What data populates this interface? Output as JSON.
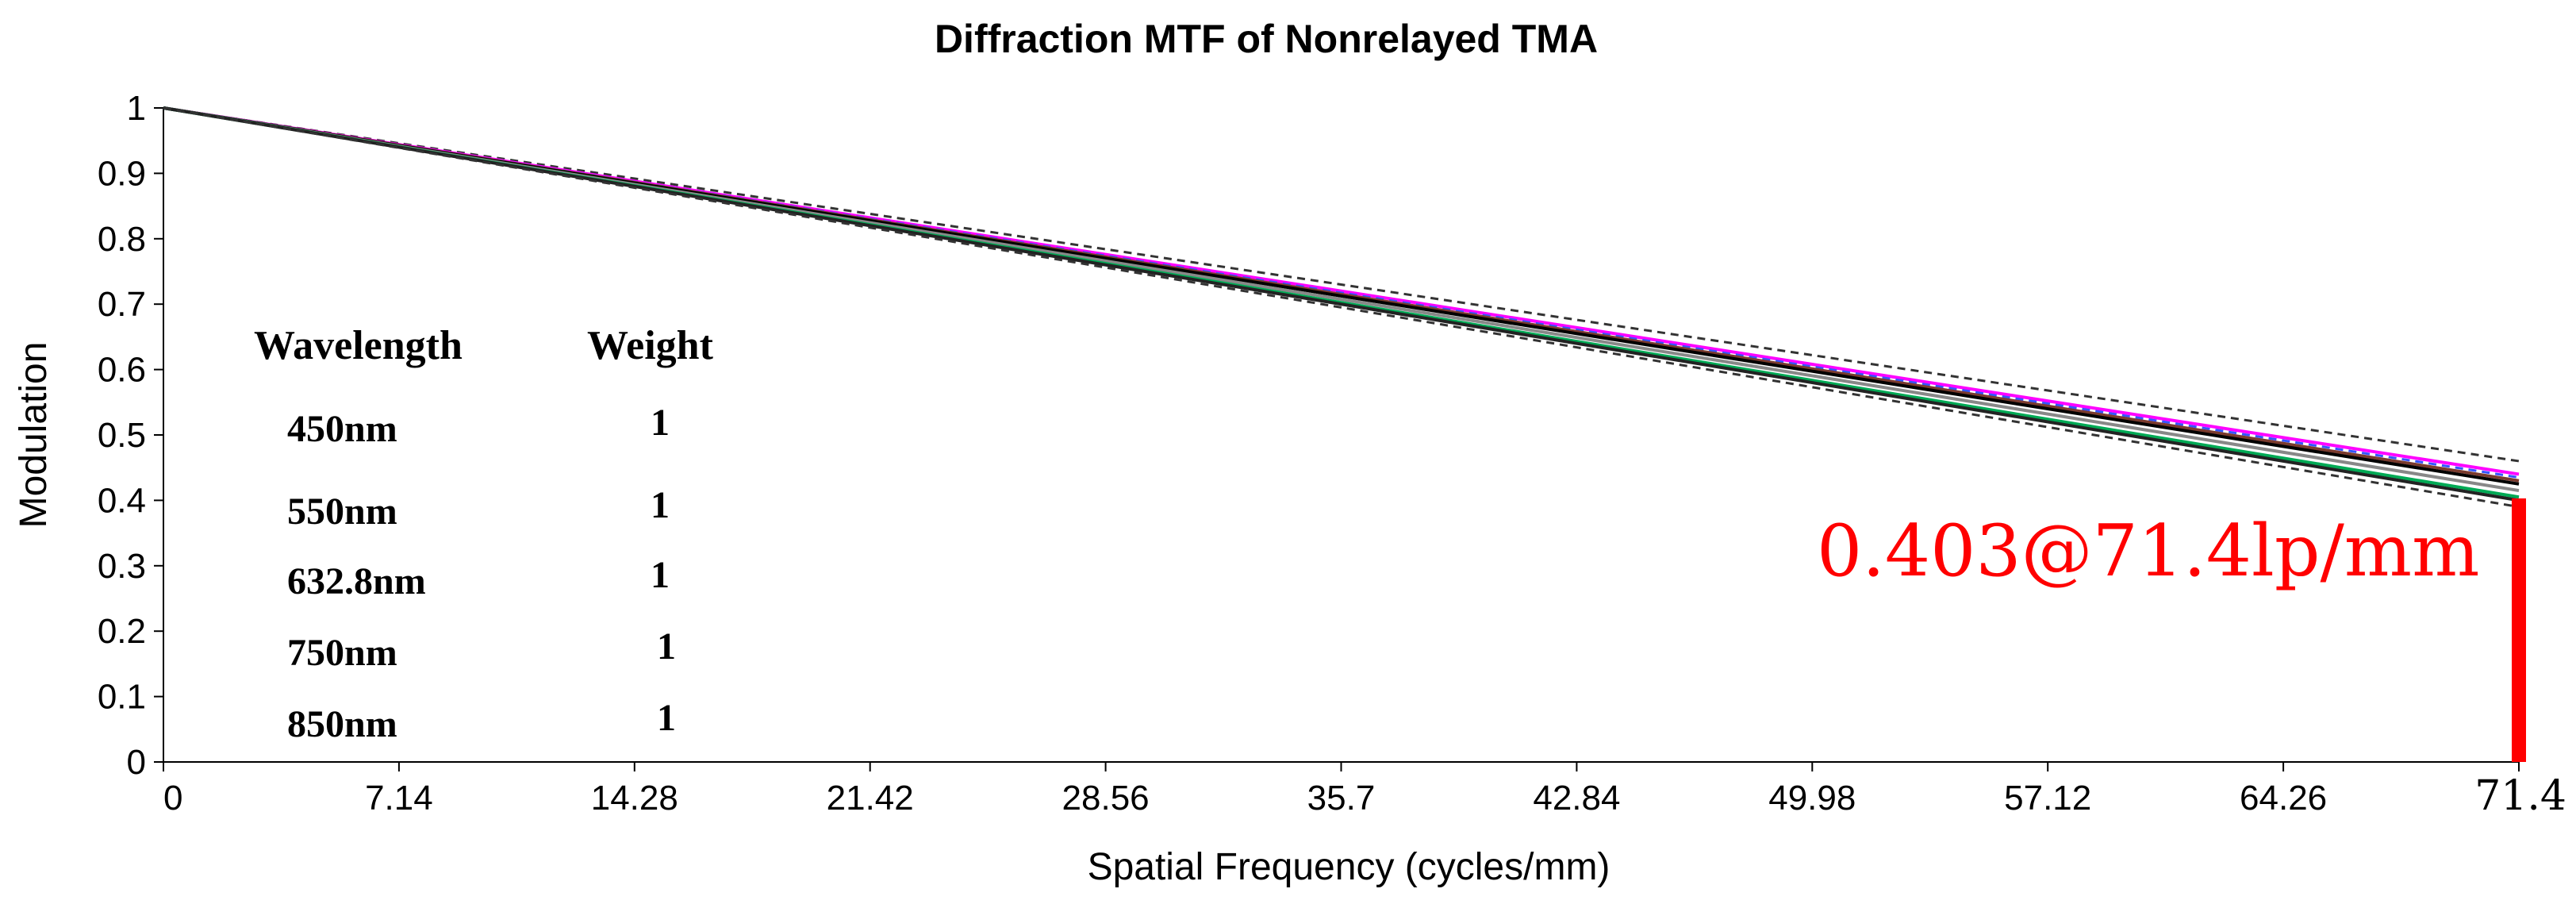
{
  "chart_data": {
    "type": "line",
    "title": "Diffraction MTF of Nonrelayed TMA",
    "xlabel": "Spatial Frequency (cycles/mm)",
    "ylabel": "Modulation",
    "xlim": [
      0,
      71.4
    ],
    "ylim": [
      0,
      1
    ],
    "x_ticks": [
      "0",
      "7.14",
      "14.28",
      "21.42",
      "28.56",
      "35.7",
      "42.84",
      "49.98",
      "57.12",
      "64.26",
      "71.4"
    ],
    "y_ticks": [
      "0",
      "0.1",
      "0.2",
      "0.3",
      "0.4",
      "0.5",
      "0.6",
      "0.7",
      "0.8",
      "0.9",
      "1"
    ],
    "grid": false,
    "series": [
      {
        "style": "dashed",
        "color": "#333333",
        "x": [
          0,
          71.4
        ],
        "y": [
          1,
          0.46
        ]
      },
      {
        "style": "solid",
        "color": "#ff00ff",
        "x": [
          0,
          71.4
        ],
        "y": [
          1,
          0.44
        ]
      },
      {
        "style": "dashed",
        "color": "#3355ff",
        "x": [
          0,
          71.4
        ],
        "y": [
          1,
          0.435
        ]
      },
      {
        "style": "solid",
        "color": "#7a3b2e",
        "x": [
          0,
          71.4
        ],
        "y": [
          1,
          0.43
        ]
      },
      {
        "style": "solid",
        "color": "#000000",
        "x": [
          0,
          71.4
        ],
        "y": [
          1,
          0.425
        ]
      },
      {
        "style": "solid",
        "color": "#888888",
        "x": [
          0,
          71.4
        ],
        "y": [
          1,
          0.415
        ]
      },
      {
        "style": "solid",
        "color": "#00aa55",
        "x": [
          0,
          71.4
        ],
        "y": [
          1,
          0.405
        ]
      },
      {
        "style": "solid",
        "color": "#222222",
        "x": [
          0,
          71.4
        ],
        "y": [
          1,
          0.4
        ]
      },
      {
        "style": "dashed",
        "color": "#333333",
        "x": [
          0,
          71.4
        ],
        "y": [
          1,
          0.39
        ]
      }
    ],
    "legend": {
      "position": "left",
      "headers": [
        "Wavelength",
        "Weight"
      ],
      "rows": [
        {
          "wavelength": "450nm",
          "weight": "1"
        },
        {
          "wavelength": "550nm",
          "weight": "1"
        },
        {
          "wavelength": "632.8nm",
          "weight": "1"
        },
        {
          "wavelength": "750nm",
          "weight": "1"
        },
        {
          "wavelength": "850nm",
          "weight": "1"
        }
      ]
    },
    "annotation": {
      "text": "0.403@71.4lp/mm",
      "x": 71.4,
      "y": 0.403,
      "color": "#ff0000"
    }
  }
}
